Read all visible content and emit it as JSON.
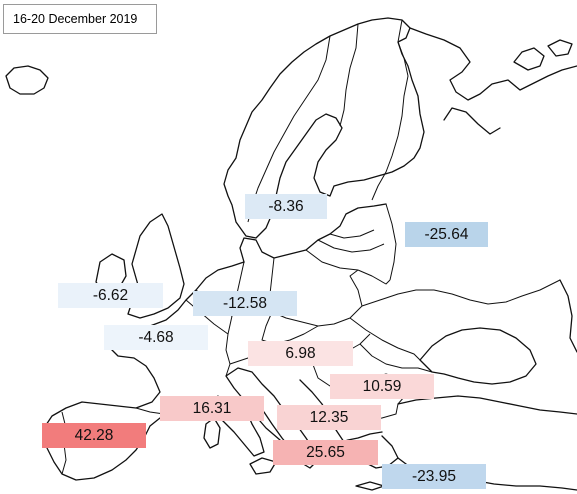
{
  "title": "16-20  December 2019",
  "labels": [
    {
      "id": "norway-sweden",
      "text": "-8.36",
      "color": "#dce9f5"
    },
    {
      "id": "russia",
      "text": "-25.64",
      "color": "#b9d4ea"
    },
    {
      "id": "ireland",
      "text": "-6.62",
      "color": "#eaf2fa"
    },
    {
      "id": "germany",
      "text": "-12.58",
      "color": "#d5e5f3"
    },
    {
      "id": "uk",
      "text": "-4.68",
      "color": "#edf4fb"
    },
    {
      "id": "hungary",
      "text": "6.98",
      "color": "#fbe3e3"
    },
    {
      "id": "romania",
      "text": "10.59",
      "color": "#fad8d8"
    },
    {
      "id": "france-italy",
      "text": "16.31",
      "color": "#f8c9c9"
    },
    {
      "id": "balkans",
      "text": "12.35",
      "color": "#f9d3d3"
    },
    {
      "id": "spain",
      "text": "42.28",
      "color": "#f27c7c"
    },
    {
      "id": "greece",
      "text": "25.65",
      "color": "#f6b3b3"
    },
    {
      "id": "turkey",
      "text": "-23.95",
      "color": "#bfd7ed"
    }
  ]
}
